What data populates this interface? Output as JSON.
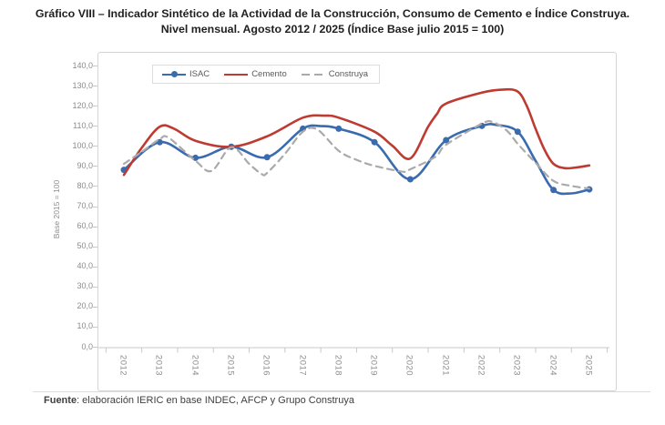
{
  "title": {
    "line1": "Gráfico VIII – Indicador Sintético de la Actividad de la Construcción, Consumo de Cemento e Índice Construya.",
    "line2": "Nivel mensual. Agosto 2012 / 2025 (Índice Base julio 2015 = 100)"
  },
  "footer": {
    "prefix": "Fuente",
    "rest": ": elaboración IERIC en base INDEC, AFCP y Grupo Construya"
  },
  "chart_data": {
    "type": "line",
    "title": "Indicador Sintético de la Actividad de la Construcción, Consumo de Cemento e Índice Construya",
    "ylabel": "Base 2015 = 100",
    "ylim": [
      0,
      140
    ],
    "ytick_step": 10,
    "ytick_labels": [
      "0,0",
      "10,0",
      "20,0",
      "30,0",
      "40,0",
      "50,0",
      "60,0",
      "70,0",
      "80,0",
      "90,0",
      "100,0",
      "110,0",
      "120,0",
      "130,0",
      "140,0"
    ],
    "categories": [
      "2012",
      "2013",
      "2014",
      "2015",
      "2016",
      "2017",
      "2018",
      "2019",
      "2020",
      "2021",
      "2022",
      "2023",
      "2024",
      "2025"
    ],
    "grid": false,
    "legend_position": "top-left-inside",
    "series": [
      {
        "name": "ISAC",
        "color": "#3a6bae",
        "style": "solid",
        "marker": true,
        "values": [
          88.5,
          102.3,
          94.5,
          100.0,
          94.8,
          109.0,
          109.0,
          102.3,
          83.8,
          103.3,
          110.4,
          107.5,
          78.5,
          78.8
        ],
        "curve": [
          [
            2012,
            88.5
          ],
          [
            2013,
            102.3
          ],
          [
            2014,
            94.5
          ],
          [
            2015,
            100
          ],
          [
            2016,
            94.8
          ],
          [
            2017,
            109
          ],
          [
            2017.5,
            110.3
          ],
          [
            2018,
            109
          ],
          [
            2019,
            102.3
          ],
          [
            2020,
            83.8
          ],
          [
            2021,
            103.3
          ],
          [
            2022,
            110.4
          ],
          [
            2022.4,
            110.9
          ],
          [
            2023,
            107.5
          ],
          [
            2023.5,
            93
          ],
          [
            2024,
            78.5
          ],
          [
            2024.5,
            76.8
          ],
          [
            2025,
            78.8
          ]
        ]
      },
      {
        "name": "Cemento",
        "color": "#be3b32",
        "style": "solid",
        "marker": false,
        "values": [
          86.0,
          110.0,
          103.0,
          100.0,
          105.2,
          114.5,
          114.5,
          107.5,
          94.2,
          121.5,
          127.0,
          127.5,
          91.5,
          90.7
        ],
        "curve": [
          [
            2012,
            86
          ],
          [
            2012.5,
            99.5
          ],
          [
            2013,
            110
          ],
          [
            2013.4,
            109
          ],
          [
            2014,
            103
          ],
          [
            2015,
            100
          ],
          [
            2016,
            105.2
          ],
          [
            2017,
            114.5
          ],
          [
            2017.6,
            115.5
          ],
          [
            2018,
            114.5
          ],
          [
            2019,
            107.5
          ],
          [
            2019.5,
            100.5
          ],
          [
            2020,
            94.2
          ],
          [
            2020.5,
            110
          ],
          [
            2020.75,
            116.5
          ],
          [
            2021,
            121.5
          ],
          [
            2022,
            127
          ],
          [
            2022.6,
            128.5
          ],
          [
            2023,
            127.5
          ],
          [
            2023.25,
            120.5
          ],
          [
            2023.5,
            109
          ],
          [
            2023.75,
            98.5
          ],
          [
            2024,
            91.5
          ],
          [
            2024.3,
            89.4
          ],
          [
            2024.6,
            89.6
          ],
          [
            2025,
            90.7
          ]
        ]
      },
      {
        "name": "Construya",
        "color": "#aaaaaa",
        "style": "dashed",
        "marker": false,
        "values": [
          91.5,
          103.8,
          93.0,
          99.8,
          87.0,
          107.5,
          98.0,
          90.5,
          88.8,
          101.0,
          111.5,
          101.5,
          83.0,
          79.2
        ],
        "curve": [
          [
            2012,
            91.5
          ],
          [
            2012.5,
            97.5
          ],
          [
            2013,
            103.8
          ],
          [
            2013.25,
            104.5
          ],
          [
            2014,
            93
          ],
          [
            2014.45,
            88
          ],
          [
            2015,
            99.8
          ],
          [
            2015.5,
            91.5
          ],
          [
            2015.85,
            86.4
          ],
          [
            2016,
            87
          ],
          [
            2016.5,
            96.5
          ],
          [
            2017,
            107.5
          ],
          [
            2017.4,
            108.6
          ],
          [
            2018,
            98
          ],
          [
            2018.5,
            93.5
          ],
          [
            2019,
            90.5
          ],
          [
            2019.8,
            87.6
          ],
          [
            2020,
            88.8
          ],
          [
            2020.7,
            95
          ],
          [
            2021,
            101
          ],
          [
            2022,
            111.5
          ],
          [
            2022.3,
            112.3
          ],
          [
            2022.7,
            108
          ],
          [
            2023,
            101.5
          ],
          [
            2023.5,
            92
          ],
          [
            2024,
            83
          ],
          [
            2024.5,
            80.5
          ],
          [
            2025,
            79.2
          ]
        ]
      }
    ]
  }
}
